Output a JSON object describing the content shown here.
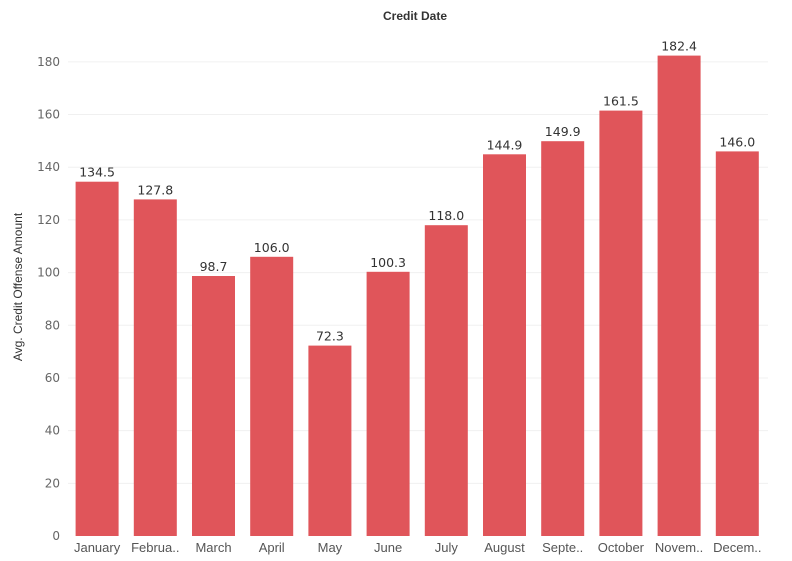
{
  "chart_data": {
    "type": "bar",
    "title": "Credit Date",
    "xlabel": "",
    "ylabel": "Avg. Credit Offense Amount",
    "categories": [
      "January",
      "February",
      "March",
      "April",
      "May",
      "June",
      "July",
      "August",
      "September",
      "October",
      "November",
      "December"
    ],
    "tick_labels": [
      "January",
      "Februa..",
      "March",
      "April",
      "May",
      "June",
      "July",
      "August",
      "Septe..",
      "October",
      "Novem..",
      "Decem.."
    ],
    "values": [
      134.5,
      127.8,
      98.7,
      106.0,
      72.3,
      100.3,
      118.0,
      144.9,
      149.9,
      161.5,
      182.4,
      146.0
    ],
    "value_labels": [
      "134.5",
      "127.8",
      "98.7",
      "106.0",
      "72.3",
      "100.3",
      "118.0",
      "144.9",
      "149.9",
      "161.5",
      "182.4",
      "146.0"
    ],
    "ylim": [
      0,
      194
    ],
    "yticks": [
      0,
      20,
      40,
      60,
      80,
      100,
      120,
      140,
      160,
      180
    ],
    "grid": true,
    "legend": "none",
    "bar_color": "#e0555a",
    "grid_color": "#f0f0f0"
  }
}
